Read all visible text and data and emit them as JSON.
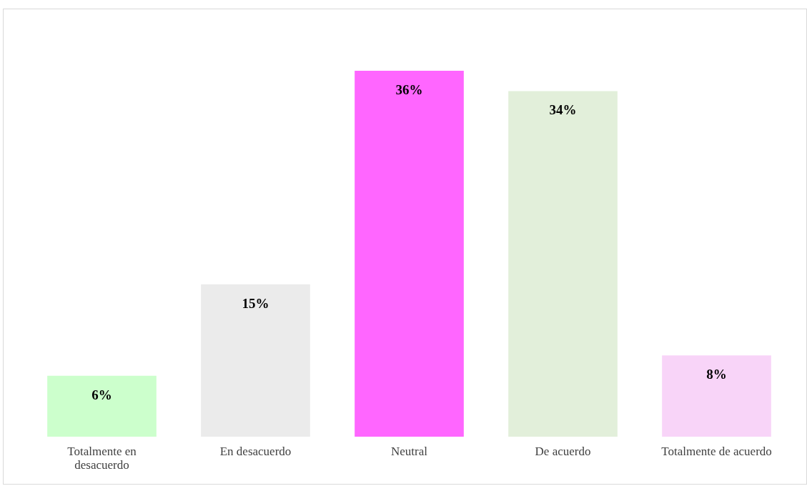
{
  "chart_data": {
    "type": "bar",
    "categories": [
      "Totalmente en desacuerdo",
      "En desacuerdo",
      "Neutral",
      "De acuerdo",
      "Totalmente de acuerdo"
    ],
    "values": [
      6,
      15,
      36,
      34,
      8
    ],
    "colors": [
      "#ccffcc",
      "#ebebeb",
      "#ff66ff",
      "#e2efda",
      "#f8d4f8"
    ],
    "value_labels": [
      "6%",
      "15%",
      "36%",
      "34%",
      "8%"
    ]
  }
}
